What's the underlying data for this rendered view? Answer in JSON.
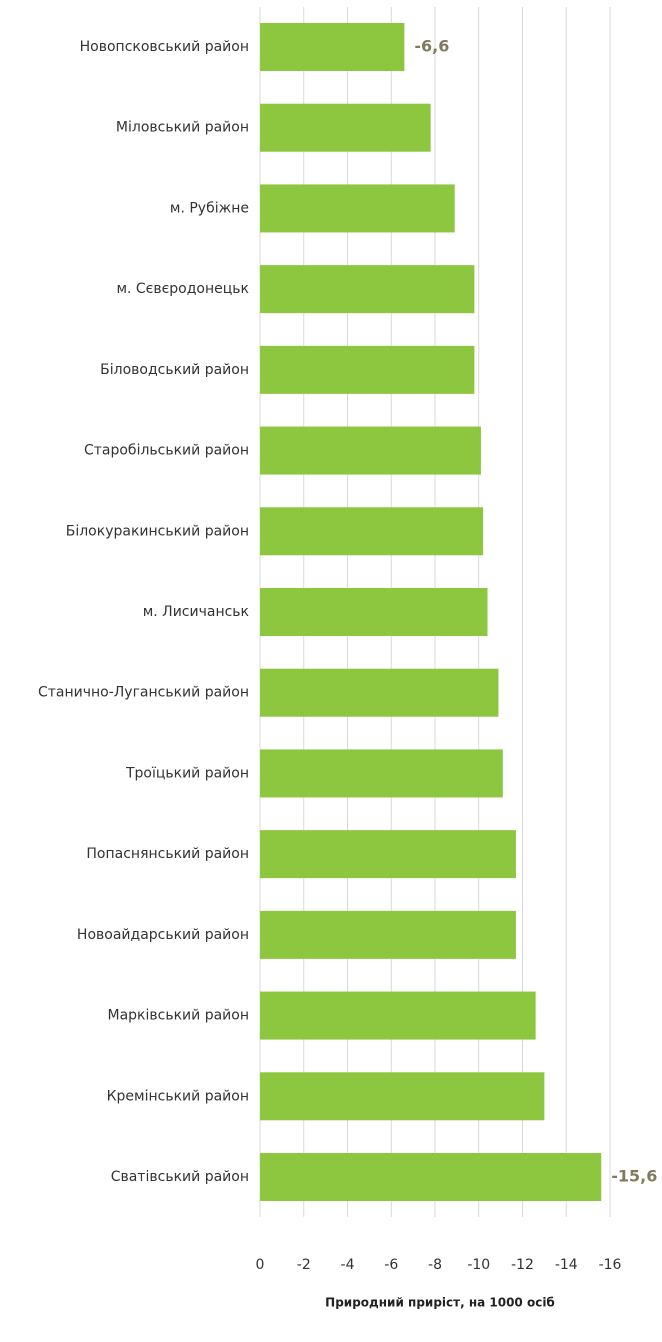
{
  "chart_data": {
    "type": "barh",
    "xlabel": "Природний приріст, на 1000 осіб",
    "categories": [
      "Новопсковський район",
      "Міловський район",
      "м. Рубіжне",
      "м. Сєвєродонецьк",
      "Біловодський район",
      "Старобільський район",
      "Білокуракинський район",
      "м. Лисичанськ",
      "Станично-Луганський район",
      "Троїцький район",
      "Попаснянський район",
      "Новоайдарський район",
      "Марківський район",
      "Кремінський район",
      "Сватівський район"
    ],
    "values": [
      -6.6,
      -7.8,
      -8.9,
      -9.8,
      -9.8,
      -10.1,
      -10.2,
      -10.4,
      -10.9,
      -11.1,
      -11.7,
      -11.7,
      -12.6,
      -13.0,
      -15.6
    ],
    "value_labels": [
      "-6,6",
      null,
      null,
      null,
      null,
      null,
      null,
      null,
      null,
      null,
      null,
      null,
      null,
      null,
      "-15,6"
    ],
    "color": "#8dc63f",
    "xlim": [
      0,
      -16
    ],
    "xticks": [
      0,
      -2,
      -4,
      -6,
      -8,
      -10,
      -12,
      -14,
      -16
    ],
    "grid": true
  }
}
